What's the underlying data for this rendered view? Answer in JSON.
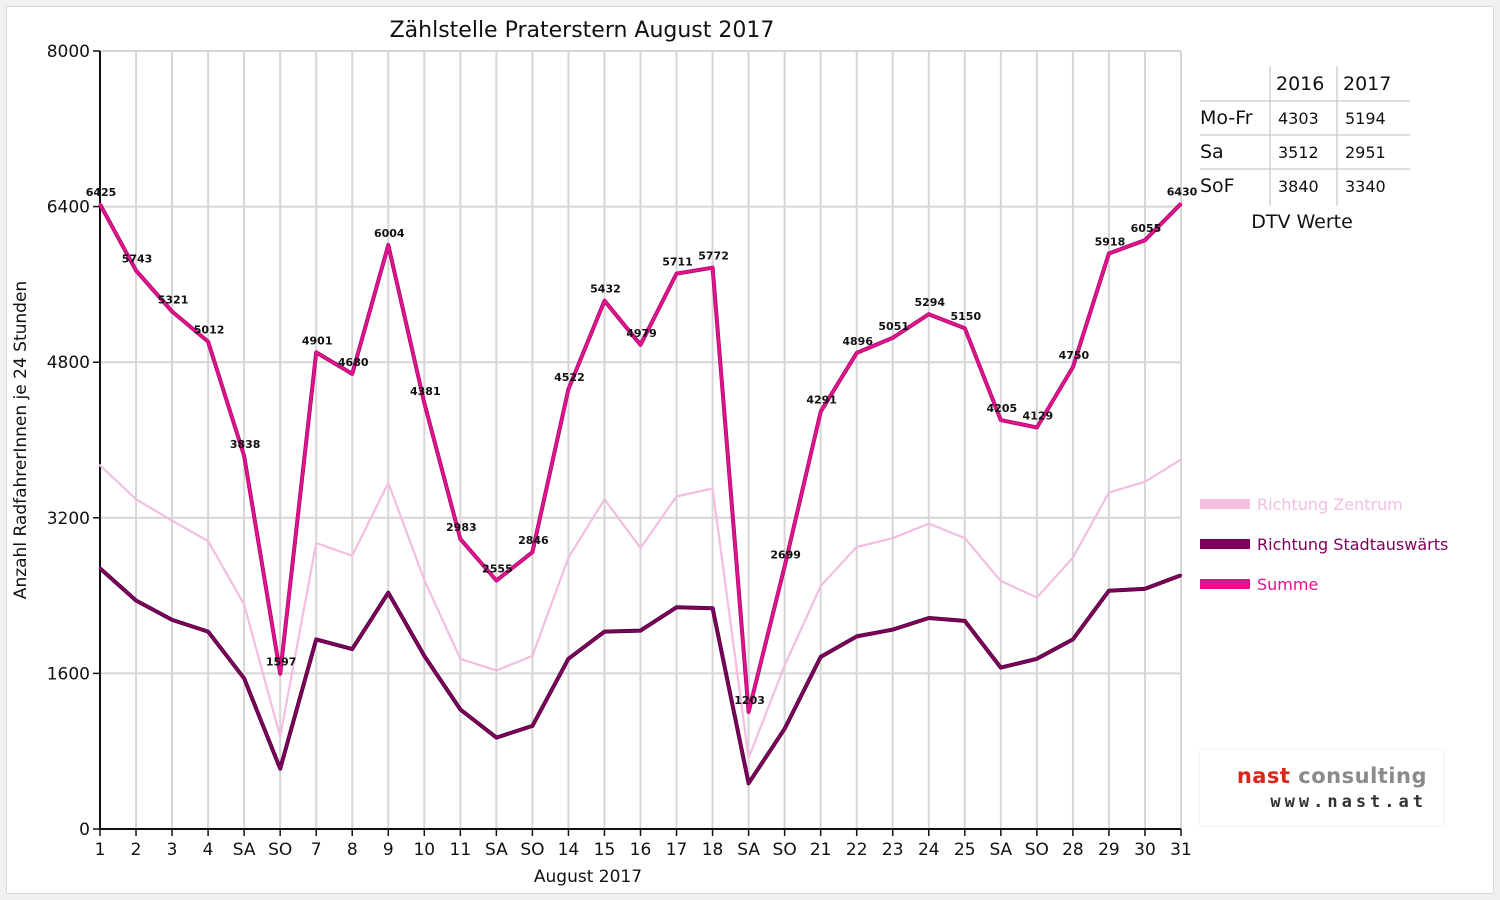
{
  "chart_data": {
    "type": "line",
    "title": "Zählstelle Praterstern August 2017",
    "xlabel": "August 2017",
    "ylabel": "Anzahl RadfahrerInnen je 24 Stunden",
    "ylim": [
      0,
      8000
    ],
    "yticks": [
      "0",
      "1600",
      "3200",
      "4800",
      "6400",
      "8000"
    ],
    "grid": true,
    "legend_position": "right",
    "categories": [
      "1",
      "2",
      "3",
      "4",
      "SA",
      "SO",
      "7",
      "8",
      "9",
      "10",
      "11",
      "SA",
      "SO",
      "14",
      "15",
      "16",
      "17",
      "18",
      "SA",
      "SO",
      "21",
      "22",
      "23",
      "24",
      "25",
      "SA",
      "SO",
      "28",
      "29",
      "30",
      "31"
    ],
    "category_colors": [
      "#000",
      "#000",
      "#000",
      "#000",
      "#000",
      "#e00000",
      "#000",
      "#000",
      "#000",
      "#000",
      "#000",
      "#000",
      "#e00000",
      "#000",
      "#e00000",
      "#000",
      "#000",
      "#000",
      "#000",
      "#e00000",
      "#000",
      "#000",
      "#000",
      "#000",
      "#000",
      "#000",
      "#e00000",
      "#000",
      "#000",
      "#000",
      "#000"
    ],
    "series": [
      {
        "name": "Richtung Zentrum",
        "color": "#f2bfe0",
        "values": [
          3740,
          3390,
          3170,
          2960,
          2310,
          950,
          2940,
          2810,
          3560,
          2560,
          1750,
          1630,
          1780,
          2790,
          3390,
          2890,
          3420,
          3500,
          730,
          1680,
          2500,
          2900,
          2990,
          3140,
          2990,
          2550,
          2380,
          2790,
          3460,
          3570,
          3800
        ]
      },
      {
        "name": "Richtung Stadtauswärts",
        "color": "#80005e",
        "values": [
          2680,
          2350,
          2150,
          2030,
          1550,
          620,
          1950,
          1850,
          2430,
          1780,
          1230,
          940,
          1060,
          1750,
          2030,
          2040,
          2280,
          2270,
          470,
          1030,
          1770,
          1980,
          2050,
          2170,
          2140,
          1660,
          1750,
          1950,
          2450,
          2470,
          2610
        ]
      },
      {
        "name": "Summe",
        "color": "#e3128f",
        "values": [
          6425,
          5743,
          5321,
          5012,
          3838,
          1597,
          4901,
          4680,
          6004,
          4381,
          2983,
          2555,
          2846,
          4522,
          5432,
          4979,
          5711,
          5772,
          1203,
          2699,
          4291,
          4896,
          5051,
          5294,
          5150,
          4205,
          4129,
          4750,
          5918,
          6055,
          6430
        ],
        "labels": [
          "6425",
          "5743",
          "5321",
          "5012",
          "3838",
          "1597",
          "4901",
          "4680",
          "6004",
          "4381",
          "2983",
          "2555",
          "2846",
          "4522",
          "5432",
          "4979",
          "5711",
          "5772",
          "1203",
          "2699",
          "4291",
          "4896",
          "5051",
          "5294",
          "5150",
          "4205",
          "4129",
          "4750",
          "5918",
          "6055",
          "6430"
        ]
      }
    ]
  },
  "dtv_table": {
    "caption": "DTV Werte",
    "columns": [
      "2016",
      "2017"
    ],
    "rows": [
      {
        "label": "Mo-Fr",
        "values": [
          "4303",
          "5194"
        ]
      },
      {
        "label": "Sa",
        "values": [
          "3512",
          "2951"
        ]
      },
      {
        "label": "SoF",
        "values": [
          "3840",
          "3340"
        ]
      }
    ]
  },
  "logo": {
    "name_part1": "nast ",
    "name_part2": "consulting",
    "url": "www.nast.at"
  }
}
